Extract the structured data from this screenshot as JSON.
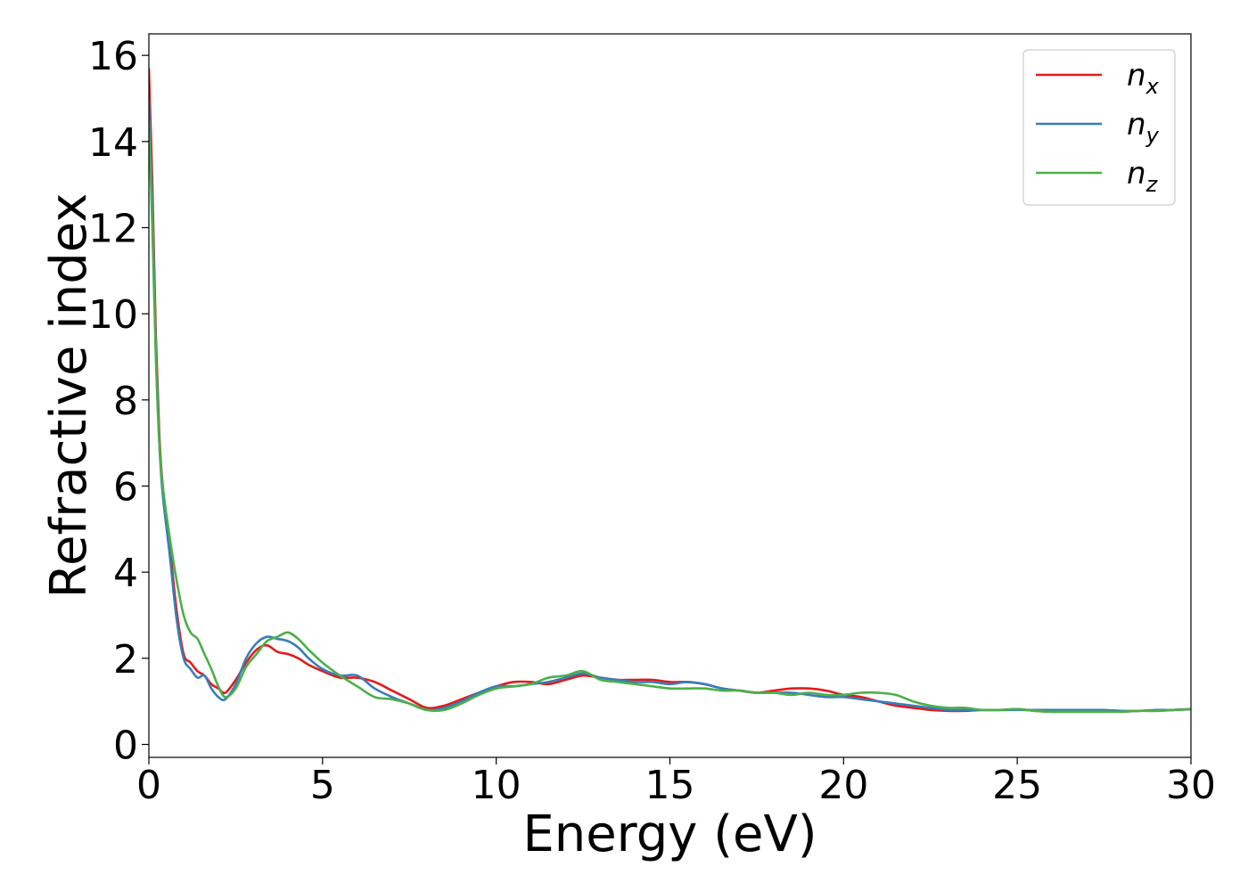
{
  "chart_data": {
    "type": "line",
    "xlabel": "Energy (eV)",
    "ylabel": "Refractive index",
    "xlim": [
      0,
      30
    ],
    "ylim": [
      -0.3,
      16.5
    ],
    "xticks": [
      0,
      5,
      10,
      15,
      20,
      25,
      30
    ],
    "xtick_labels": [
      "0",
      "5",
      "10",
      "15",
      "20",
      "25",
      "30"
    ],
    "yticks": [
      0,
      2,
      4,
      6,
      8,
      10,
      12,
      14,
      16
    ],
    "ytick_labels": [
      "0",
      "2",
      "4",
      "6",
      "8",
      "10",
      "12",
      "14",
      "16"
    ],
    "grid": false,
    "legend_position": "top-right",
    "series": [
      {
        "name": "n_x",
        "label_base": "n",
        "label_sub": "x",
        "color": "#e41a1c",
        "x": [
          0,
          0.1,
          0.2,
          0.3,
          0.4,
          0.6,
          0.8,
          1.0,
          1.2,
          1.4,
          1.6,
          1.8,
          2.0,
          2.2,
          2.5,
          2.8,
          3.1,
          3.4,
          3.7,
          4.0,
          4.3,
          4.6,
          5.0,
          5.5,
          6.0,
          6.5,
          7.0,
          7.5,
          8.0,
          8.5,
          9.0,
          9.5,
          10.0,
          10.5,
          11.0,
          11.5,
          12.0,
          12.5,
          13.0,
          13.5,
          14.0,
          14.5,
          15.0,
          15.5,
          16.0,
          16.5,
          17.0,
          17.5,
          18.0,
          18.5,
          19.0,
          19.5,
          20.0,
          20.5,
          21.0,
          21.5,
          22.0,
          22.5,
          23.0,
          23.5,
          24.0,
          24.5,
          25.0,
          25.5,
          26.0,
          26.5,
          27.0,
          27.5,
          28.0,
          28.5,
          29.0,
          29.5,
          30.0
        ],
        "y": [
          15.7,
          13.0,
          9.5,
          7.2,
          6.0,
          4.6,
          3.1,
          2.1,
          1.9,
          1.7,
          1.6,
          1.4,
          1.3,
          1.2,
          1.5,
          1.9,
          2.2,
          2.3,
          2.15,
          2.1,
          2.0,
          1.85,
          1.7,
          1.55,
          1.55,
          1.45,
          1.25,
          1.05,
          0.85,
          0.9,
          1.05,
          1.2,
          1.35,
          1.45,
          1.45,
          1.4,
          1.5,
          1.6,
          1.55,
          1.5,
          1.5,
          1.5,
          1.45,
          1.45,
          1.4,
          1.3,
          1.25,
          1.2,
          1.25,
          1.3,
          1.3,
          1.25,
          1.15,
          1.1,
          1.0,
          0.9,
          0.85,
          0.8,
          0.78,
          0.78,
          0.8,
          0.8,
          0.82,
          0.78,
          0.76,
          0.76,
          0.76,
          0.76,
          0.76,
          0.78,
          0.78,
          0.8,
          0.82
        ]
      },
      {
        "name": "n_y",
        "label_base": "n",
        "label_sub": "y",
        "color": "#377eb8",
        "x": [
          0,
          0.1,
          0.2,
          0.3,
          0.4,
          0.6,
          0.8,
          1.0,
          1.2,
          1.4,
          1.6,
          1.8,
          2.0,
          2.2,
          2.5,
          2.8,
          3.1,
          3.4,
          3.7,
          4.0,
          4.3,
          4.6,
          5.0,
          5.5,
          6.0,
          6.5,
          7.0,
          7.5,
          8.0,
          8.5,
          9.0,
          9.5,
          10.0,
          10.5,
          11.0,
          11.5,
          12.0,
          12.5,
          13.0,
          13.5,
          14.0,
          14.5,
          15.0,
          15.5,
          16.0,
          16.5,
          17.0,
          17.5,
          18.0,
          18.5,
          19.0,
          19.5,
          20.0,
          20.5,
          21.0,
          21.5,
          22.0,
          22.5,
          23.0,
          23.5,
          24.0,
          24.5,
          25.0,
          25.5,
          26.0,
          26.5,
          27.0,
          27.5,
          28.0,
          28.5,
          29.0,
          29.5,
          30.0
        ],
        "y": [
          15.0,
          12.5,
          9.2,
          7.0,
          5.8,
          4.4,
          2.9,
          2.0,
          1.75,
          1.55,
          1.6,
          1.3,
          1.1,
          1.05,
          1.4,
          2.0,
          2.35,
          2.5,
          2.45,
          2.4,
          2.25,
          2.0,
          1.75,
          1.6,
          1.6,
          1.3,
          1.1,
          0.95,
          0.8,
          0.85,
          1.0,
          1.2,
          1.35,
          1.35,
          1.4,
          1.45,
          1.55,
          1.65,
          1.55,
          1.5,
          1.45,
          1.45,
          1.4,
          1.45,
          1.4,
          1.3,
          1.25,
          1.2,
          1.2,
          1.2,
          1.15,
          1.1,
          1.1,
          1.05,
          1.0,
          0.95,
          0.9,
          0.85,
          0.8,
          0.8,
          0.8,
          0.8,
          0.8,
          0.8,
          0.8,
          0.8,
          0.8,
          0.8,
          0.78,
          0.78,
          0.8,
          0.8,
          0.82
        ]
      },
      {
        "name": "n_z",
        "label_base": "n",
        "label_sub": "z",
        "color": "#4daf4a",
        "x": [
          0,
          0.1,
          0.2,
          0.3,
          0.4,
          0.6,
          0.8,
          1.0,
          1.2,
          1.4,
          1.6,
          1.8,
          2.0,
          2.2,
          2.5,
          2.8,
          3.1,
          3.4,
          3.7,
          4.0,
          4.3,
          4.6,
          5.0,
          5.5,
          6.0,
          6.5,
          7.0,
          7.5,
          8.0,
          8.5,
          9.0,
          9.5,
          10.0,
          10.5,
          11.0,
          11.5,
          12.0,
          12.5,
          13.0,
          13.5,
          14.0,
          14.5,
          15.0,
          15.5,
          16.0,
          16.5,
          17.0,
          17.5,
          18.0,
          18.5,
          19.0,
          19.5,
          20.0,
          20.5,
          21.0,
          21.5,
          22.0,
          22.5,
          23.0,
          23.5,
          24.0,
          24.5,
          25.0,
          25.5,
          26.0,
          26.5,
          27.0,
          27.5,
          28.0,
          28.5,
          29.0,
          29.5,
          30.0
        ],
        "y": [
          14.5,
          12.0,
          9.0,
          7.0,
          6.0,
          4.8,
          3.8,
          3.0,
          2.6,
          2.45,
          2.1,
          1.75,
          1.35,
          1.1,
          1.3,
          1.8,
          2.1,
          2.4,
          2.5,
          2.6,
          2.45,
          2.2,
          1.9,
          1.6,
          1.35,
          1.1,
          1.05,
          0.95,
          0.8,
          0.8,
          0.95,
          1.15,
          1.3,
          1.35,
          1.4,
          1.55,
          1.6,
          1.7,
          1.5,
          1.45,
          1.4,
          1.35,
          1.3,
          1.3,
          1.3,
          1.25,
          1.25,
          1.2,
          1.2,
          1.15,
          1.2,
          1.15,
          1.15,
          1.2,
          1.2,
          1.15,
          1.0,
          0.9,
          0.85,
          0.85,
          0.8,
          0.8,
          0.82,
          0.78,
          0.76,
          0.76,
          0.76,
          0.76,
          0.76,
          0.78,
          0.78,
          0.8,
          0.82
        ]
      }
    ]
  }
}
